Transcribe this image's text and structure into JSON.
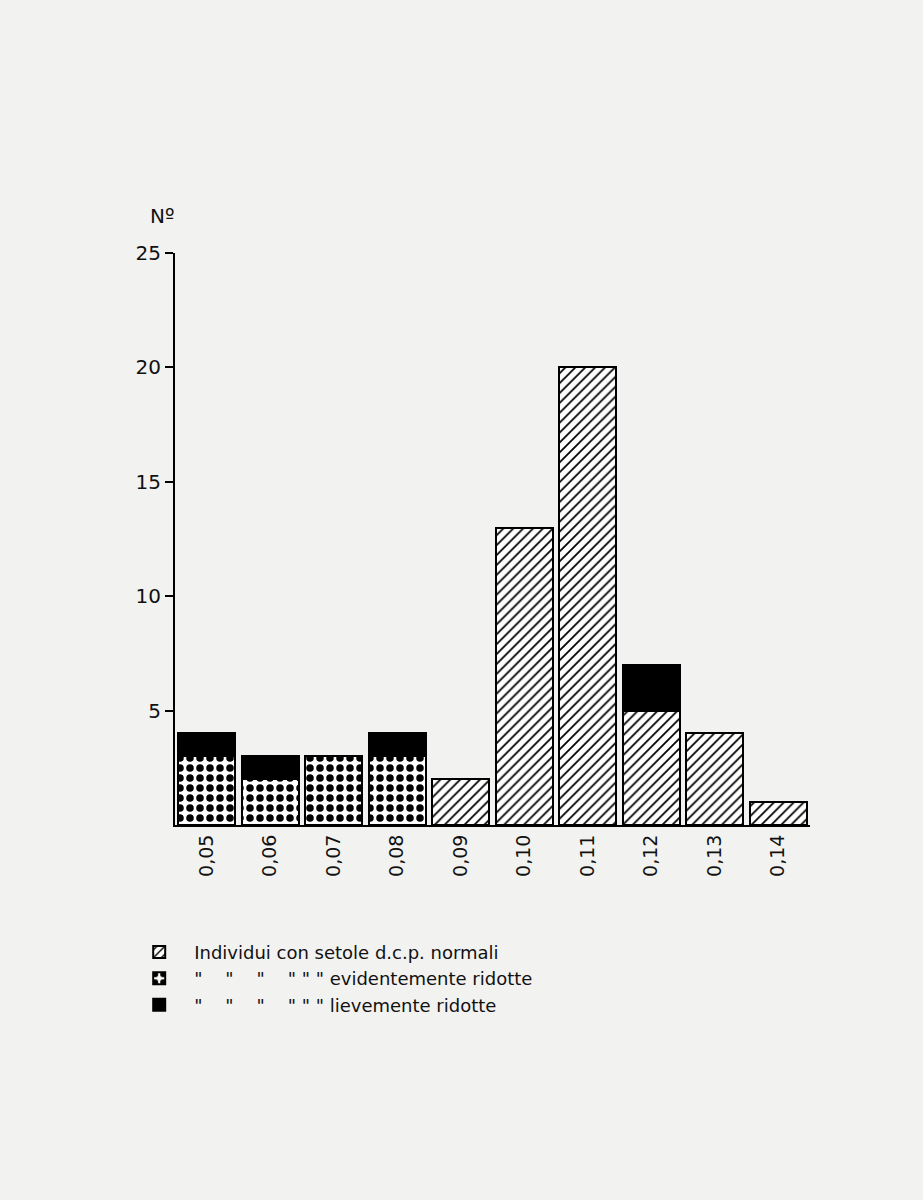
{
  "chart_data": {
    "type": "bar",
    "stacked": true,
    "y_label": "Nº",
    "categories": [
      "0,05",
      "0,06",
      "0,07",
      "0,08",
      "0,09",
      "0,10",
      "0,11",
      "0,12",
      "0,13",
      "0,14"
    ],
    "series": [
      {
        "name": "Individui con setole d.c.p. normali",
        "color": "#000000",
        "marker": "hatch",
        "values": [
          0,
          0,
          0,
          0,
          2,
          13,
          20,
          5,
          4,
          1
        ]
      },
      {
        "name": "\"    \"    \"    \" \" \" evidentemente ridotte",
        "color": "#000000",
        "marker": "dots",
        "values": [
          3,
          2,
          3,
          3,
          0,
          0,
          0,
          0,
          0,
          0
        ]
      },
      {
        "name": "\"    \"    \"    \" \" \" lievemente ridotte",
        "color": "#000000",
        "marker": "solid",
        "values": [
          1,
          1,
          0,
          1,
          0,
          0,
          0,
          2,
          0,
          0
        ]
      }
    ],
    "ylim": [
      0,
      25
    ],
    "yticks": [
      5,
      10,
      15,
      20,
      25
    ],
    "grid": false,
    "legend": "bottom left"
  }
}
